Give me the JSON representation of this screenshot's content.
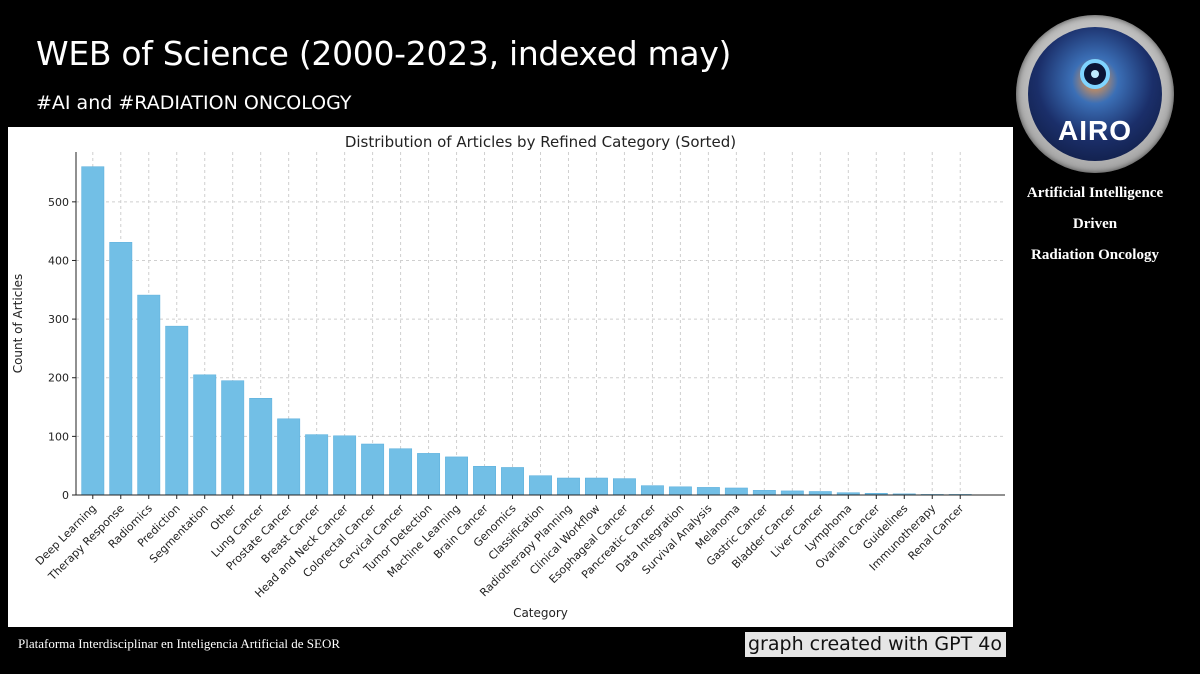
{
  "slide": {
    "title": "WEB of Science (2000-2023, indexed may)",
    "subtitle": "#AI and #RADIATION ONCOLOGY",
    "footer_left": "Plataforma Interdisciplinar en Inteligencia Artificial de SEOR",
    "footer_credit": "graph created with GPT 4o"
  },
  "logo": {
    "word": "AIRO",
    "caption_lines": [
      "Artificial Intelligence",
      "Driven",
      "Radiation Oncology"
    ]
  },
  "colors": {
    "bar": "#72bfe6",
    "bar_edge": "#5aaedb",
    "grid": "#cfcfcf",
    "axis": "#222222"
  },
  "chart_data": {
    "type": "bar",
    "title": "Distribution of Articles by Refined Category (Sorted)",
    "xlabel": "Category",
    "ylabel": "Count of Articles",
    "ylim": [
      0,
      585
    ],
    "yticks": [
      0,
      100,
      200,
      300,
      400,
      500
    ],
    "grid": true,
    "categories": [
      "Deep Learning",
      "Therapy Response",
      "Radiomics",
      "Prediction",
      "Segmentation",
      "Other",
      "Lung Cancer",
      "Prostate Cancer",
      "Breast Cancer",
      "Head and Neck Cancer",
      "Colorectal Cancer",
      "Cervical Cancer",
      "Tumor Detection",
      "Machine Learning",
      "Brain Cancer",
      "Genomics",
      "Classification",
      "Radiotherapy Planning",
      "Clinical Workflow",
      "Esophageal Cancer",
      "Pancreatic Cancer",
      "Data Integration",
      "Survival Analysis",
      "Melanoma",
      "Gastric Cancer",
      "Bladder Cancer",
      "Liver Cancer",
      "Lymphoma",
      "Ovarian Cancer",
      "Guidelines",
      "Immunotherapy",
      "Renal Cancer"
    ],
    "values": [
      560,
      431,
      341,
      288,
      205,
      195,
      165,
      130,
      103,
      101,
      87,
      79,
      71,
      65,
      49,
      47,
      33,
      29,
      29,
      28,
      16,
      14,
      13,
      12,
      8,
      7,
      6,
      4,
      3,
      2,
      1,
      1
    ]
  }
}
